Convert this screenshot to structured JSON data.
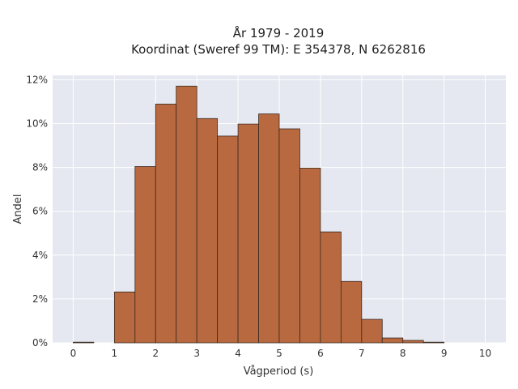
{
  "chart_data": {
    "type": "bar",
    "title_lines": [
      "År 1979 - 2019",
      "Koordinat (Sweref 99 TM): E 354378, N 6262816"
    ],
    "xlabel": "Vågperiod (s)",
    "ylabel": "Andel",
    "xlim": [
      -0.5,
      10.5
    ],
    "ylim": [
      0,
      0.122
    ],
    "x_ticks": [
      0,
      1,
      2,
      3,
      4,
      5,
      6,
      7,
      8,
      9,
      10
    ],
    "x_tick_labels": [
      "0",
      "1",
      "2",
      "3",
      "4",
      "5",
      "6",
      "7",
      "8",
      "9",
      "10"
    ],
    "y_ticks": [
      0,
      0.02,
      0.04,
      0.06,
      0.08,
      0.1,
      0.12
    ],
    "y_tick_labels": [
      "0%",
      "2%",
      "4%",
      "6%",
      "8%",
      "10%",
      "12%"
    ],
    "bin_width": 0.5,
    "bins": [
      {
        "x0": 0.0,
        "value": 0.0003
      },
      {
        "x0": 0.5,
        "value": 0.0
      },
      {
        "x0": 1.0,
        "value": 0.0232
      },
      {
        "x0": 1.5,
        "value": 0.0804
      },
      {
        "x0": 2.0,
        "value": 0.1089
      },
      {
        "x0": 2.5,
        "value": 0.1171
      },
      {
        "x0": 3.0,
        "value": 0.1023
      },
      {
        "x0": 3.5,
        "value": 0.0943
      },
      {
        "x0": 4.0,
        "value": 0.0998
      },
      {
        "x0": 4.5,
        "value": 0.1044
      },
      {
        "x0": 5.0,
        "value": 0.0976
      },
      {
        "x0": 5.5,
        "value": 0.0797
      },
      {
        "x0": 6.0,
        "value": 0.0506
      },
      {
        "x0": 6.5,
        "value": 0.028
      },
      {
        "x0": 7.0,
        "value": 0.0107
      },
      {
        "x0": 7.5,
        "value": 0.0022
      },
      {
        "x0": 8.0,
        "value": 0.0011
      },
      {
        "x0": 8.5,
        "value": 0.0003
      },
      {
        "x0": 9.0,
        "value": 0.0
      },
      {
        "x0": 9.5,
        "value": 0.0
      }
    ],
    "bar_color": "#b8693f",
    "bar_edge_color": "#3a2a20",
    "plot_bg": "#e5e8f0",
    "grid": true,
    "grid_color": "#ffffff"
  }
}
